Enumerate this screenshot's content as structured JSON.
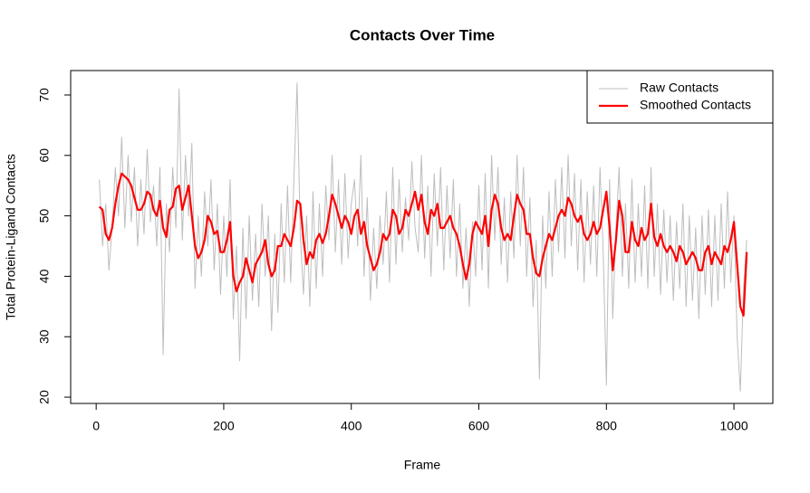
{
  "chart_data": {
    "type": "line",
    "title": "Contacts Over Time",
    "x_label": "Frame",
    "y_label": "Total Protein-Ligand Contacts",
    "x": [
      5,
      10,
      15,
      20,
      25,
      30,
      35,
      40,
      45,
      50,
      55,
      60,
      65,
      70,
      75,
      80,
      85,
      90,
      95,
      100,
      105,
      110,
      115,
      120,
      125,
      130,
      135,
      140,
      145,
      150,
      155,
      160,
      165,
      170,
      175,
      180,
      185,
      190,
      195,
      200,
      205,
      210,
      215,
      220,
      225,
      230,
      235,
      240,
      245,
      250,
      255,
      260,
      265,
      270,
      275,
      280,
      285,
      290,
      295,
      300,
      305,
      310,
      315,
      320,
      325,
      330,
      335,
      340,
      345,
      350,
      355,
      360,
      365,
      370,
      375,
      380,
      385,
      390,
      395,
      400,
      405,
      410,
      415,
      420,
      425,
      430,
      435,
      440,
      445,
      450,
      455,
      460,
      465,
      470,
      475,
      480,
      485,
      490,
      495,
      500,
      505,
      510,
      515,
      520,
      525,
      530,
      535,
      540,
      545,
      550,
      555,
      560,
      565,
      570,
      575,
      580,
      585,
      590,
      595,
      600,
      605,
      610,
      615,
      620,
      625,
      630,
      635,
      640,
      645,
      650,
      655,
      660,
      665,
      670,
      675,
      680,
      685,
      690,
      695,
      700,
      705,
      710,
      715,
      720,
      725,
      730,
      735,
      740,
      745,
      750,
      755,
      760,
      765,
      770,
      775,
      780,
      785,
      790,
      795,
      800,
      805,
      810,
      815,
      820,
      825,
      830,
      835,
      840,
      845,
      850,
      855,
      860,
      865,
      870,
      875,
      880,
      885,
      890,
      895,
      900,
      905,
      910,
      915,
      920,
      925,
      930,
      935,
      940,
      945,
      950,
      955,
      960,
      965,
      970,
      975,
      980,
      985,
      990,
      995,
      1000,
      1005,
      1010,
      1015,
      1020
    ],
    "series": [
      {
        "name": "Raw Contacts",
        "color": "#bebebe",
        "values": [
          56,
          45,
          52,
          41,
          48,
          58,
          50,
          63,
          48,
          60,
          49,
          58,
          45,
          56,
          47,
          61,
          49,
          55,
          45,
          58,
          27,
          52,
          44,
          58,
          48,
          71,
          46,
          60,
          50,
          62,
          38,
          50,
          40,
          54,
          45,
          56,
          41,
          52,
          37,
          50,
          40,
          56,
          33,
          45,
          26,
          48,
          33,
          50,
          36,
          47,
          35,
          52,
          40,
          50,
          31,
          47,
          34,
          52,
          39,
          55,
          39,
          56,
          72,
          47,
          37,
          50,
          35,
          54,
          38,
          52,
          40,
          55,
          46,
          60,
          44,
          56,
          42,
          57,
          43,
          52,
          56,
          45,
          60,
          40,
          53,
          36,
          48,
          38,
          50,
          42,
          54,
          39,
          58,
          42,
          56,
          44,
          53,
          46,
          59,
          48,
          44,
          60,
          43,
          55,
          40,
          57,
          45,
          58,
          41,
          55,
          43,
          56,
          40,
          52,
          38,
          48,
          35,
          49,
          40,
          55,
          41,
          57,
          38,
          60,
          46,
          58,
          42,
          53,
          39,
          54,
          43,
          60,
          45,
          58,
          40,
          53,
          35,
          46,
          23,
          50,
          38,
          54,
          40,
          56,
          44,
          58,
          43,
          60,
          45,
          57,
          41,
          56,
          39,
          54,
          42,
          55,
          40,
          58,
          44,
          22,
          56,
          33,
          48,
          58,
          40,
          52,
          38,
          56,
          39,
          52,
          40,
          55,
          38,
          58,
          40,
          52,
          37,
          51,
          39,
          50,
          36,
          49,
          38,
          52,
          35,
          50,
          36,
          48,
          33,
          50,
          37,
          51,
          35,
          50,
          36,
          52,
          38,
          54,
          39,
          50,
          30,
          21,
          38,
          46
        ]
      },
      {
        "name": "Smoothed Contacts",
        "color": "#ff0000",
        "values": [
          51.5,
          51,
          47,
          46,
          48,
          52,
          55,
          57,
          56.5,
          56,
          55,
          53,
          51,
          51,
          52,
          54,
          53.5,
          51,
          50,
          52.5,
          48,
          46.5,
          51,
          51.5,
          54.5,
          55,
          51,
          53,
          55,
          50,
          45,
          43,
          44,
          46,
          50,
          49,
          47,
          47.5,
          44,
          44,
          46,
          49,
          40,
          37.5,
          39,
          40,
          43,
          41,
          39,
          42,
          43,
          44,
          46,
          42,
          40,
          41,
          45,
          45,
          47,
          46,
          45,
          48,
          52.5,
          52,
          46,
          42,
          44,
          43,
          46,
          47,
          45.5,
          47,
          50,
          53.5,
          52,
          50,
          48,
          50,
          49,
          47,
          50,
          51,
          47,
          49,
          45,
          43,
          41,
          42,
          44,
          47,
          46,
          47,
          51,
          50,
          47,
          48,
          51,
          50,
          52,
          54,
          51,
          53.5,
          49,
          47,
          51,
          50,
          52,
          48,
          48,
          49,
          50,
          48,
          47,
          45,
          42,
          39.5,
          42,
          47,
          49,
          48,
          47,
          50,
          45,
          51,
          53.5,
          52,
          48,
          46,
          47,
          46,
          50,
          53.5,
          52,
          51,
          47,
          47,
          43,
          40.5,
          40,
          43,
          45,
          47,
          46,
          48,
          50,
          51,
          50,
          53,
          52,
          50,
          49,
          50,
          47,
          46,
          47,
          49,
          47,
          48,
          51,
          54,
          48,
          41,
          46,
          52.5,
          50,
          44,
          44,
          49,
          46,
          45,
          48,
          46,
          47,
          52,
          46.5,
          45,
          47,
          45,
          44,
          45,
          44,
          42.5,
          45,
          44,
          42,
          43,
          44,
          43,
          41,
          41,
          44,
          45,
          42,
          44,
          43,
          42,
          45,
          44,
          46,
          49,
          42,
          35,
          33.5,
          44
        ]
      }
    ],
    "xlim": [
      -40,
      1061
    ],
    "ylim": [
      18.96,
      74.04
    ],
    "xticks": [
      0,
      200,
      400,
      600,
      800,
      1000
    ],
    "yticks": [
      20,
      30,
      40,
      50,
      60,
      70
    ],
    "legend": "topright"
  }
}
